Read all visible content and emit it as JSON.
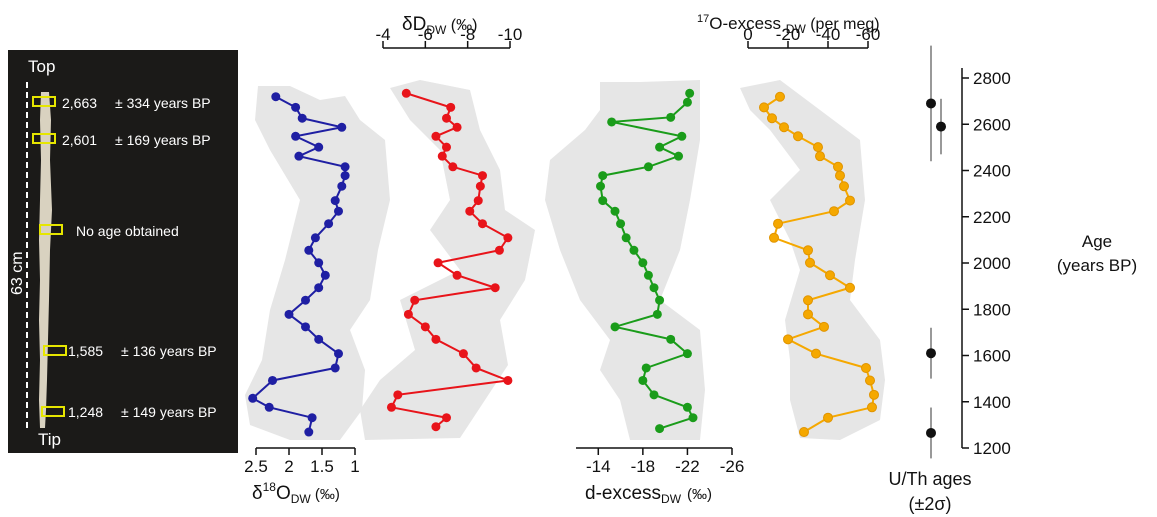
{
  "core_panel": {
    "top_label": "Top",
    "tip_label": "Tip",
    "length_label": "63 cm",
    "samples": [
      {
        "label": "2,663",
        "error": "± 334 years BP"
      },
      {
        "label": "2,601",
        "error": "± 169 years BP"
      },
      {
        "label": "No age obtained",
        "error": ""
      },
      {
        "label": "1,585",
        "error": "± 136 years BP"
      },
      {
        "label": "1,248",
        "error": "± 149 years BP"
      }
    ]
  },
  "chart_data": [
    {
      "type": "line",
      "name": "d18O",
      "color": "#1f1fa3",
      "xlabel_main": "δ",
      "xlabel_sup": "18",
      "xlabel_mid": "O",
      "xlabel_sub": "DW",
      "xlabel_unit": " (‰)",
      "xlim": [
        2.5,
        1.0
      ],
      "xticks": [
        "2.5",
        "2",
        "1.5",
        "1"
      ],
      "y": [
        2719,
        2673,
        2626,
        2587,
        2548,
        2501,
        2462,
        2416,
        2378,
        2332,
        2270,
        2224,
        2170,
        2109,
        2055,
        2001,
        1947,
        1893,
        1839,
        1778,
        1724,
        1670,
        1608,
        1546,
        1492,
        1415,
        1376,
        1331,
        1269
      ],
      "x": [
        2.2,
        1.9,
        1.8,
        1.2,
        1.9,
        1.55,
        1.85,
        1.15,
        1.15,
        1.2,
        1.3,
        1.25,
        1.4,
        1.6,
        1.7,
        1.55,
        1.45,
        1.55,
        1.75,
        2.0,
        1.75,
        1.55,
        1.25,
        1.3,
        2.25,
        2.55,
        2.3,
        1.65,
        1.7
      ]
    },
    {
      "type": "line",
      "name": "dD",
      "color": "#e8141a",
      "xlabel_main": "δD",
      "xlabel_sub": "DW",
      "xlabel_unit": " (‰)",
      "xlim": [
        -4,
        -10
      ],
      "xticks": [
        "-4",
        "-6",
        "-8",
        "-10"
      ],
      "y": [
        2734,
        2673,
        2626,
        2587,
        2548,
        2501,
        2462,
        2416,
        2378,
        2332,
        2270,
        2224,
        2170,
        2109,
        2055,
        2001,
        1947,
        1893,
        1839,
        1778,
        1724,
        1670,
        1608,
        1546,
        1492,
        1430,
        1376,
        1331,
        1292
      ],
      "x": [
        -5.1,
        -7.2,
        -7.0,
        -7.5,
        -6.5,
        -7.0,
        -6.8,
        -7.3,
        -8.7,
        -8.6,
        -8.5,
        -8.1,
        -8.7,
        -9.9,
        -9.5,
        -6.6,
        -7.5,
        -9.3,
        -5.5,
        -5.2,
        -6.0,
        -6.5,
        -7.8,
        -8.4,
        -9.9,
        -4.7,
        -4.4,
        -7.0,
        -6.5
      ]
    },
    {
      "type": "line",
      "name": "d-excess",
      "color": "#1a9c1a",
      "xlabel_main": "d-excess",
      "xlabel_sub": "DW",
      "xlabel_unit": "(‰)",
      "xlim": [
        -12,
        -26
      ],
      "xticks": [
        "-14",
        "-18",
        "-22",
        "-26"
      ],
      "y": [
        2734,
        2695,
        2630,
        2610,
        2548,
        2501,
        2462,
        2416,
        2378,
        2332,
        2270,
        2224,
        2170,
        2109,
        2055,
        2001,
        1947,
        1893,
        1839,
        1778,
        1724,
        1670,
        1608,
        1546,
        1492,
        1430,
        1376,
        1331,
        1284
      ],
      "x": [
        -22.2,
        -22.0,
        -20.5,
        -15.2,
        -21.5,
        -19.5,
        -21.2,
        -18.5,
        -14.4,
        -14.2,
        -14.4,
        -15.5,
        -16.0,
        -16.5,
        -17.2,
        -18.0,
        -18.5,
        -19.0,
        -19.5,
        -19.3,
        -15.5,
        -20.5,
        -22.0,
        -18.3,
        -18.0,
        -19.0,
        -22.0,
        -22.5,
        -19.5
      ]
    },
    {
      "type": "line",
      "name": "17O-excess",
      "color": "#f5a800",
      "xlabel_sup": "17",
      "xlabel_main": "O-excess ",
      "xlabel_sub": "DW",
      "xlabel_unit": " (per meg)",
      "xlim": [
        0,
        -60
      ],
      "xticks": [
        "0",
        "-20",
        "-40",
        "-60"
      ],
      "y": [
        2719,
        2673,
        2626,
        2587,
        2548,
        2501,
        2462,
        2416,
        2378,
        2332,
        2270,
        2224,
        2170,
        2109,
        2055,
        2001,
        1947,
        1893,
        1839,
        1778,
        1724,
        1670,
        1608,
        1546,
        1492,
        1430,
        1376,
        1331,
        1269
      ],
      "x": [
        -16.0,
        -8.0,
        -12.0,
        -18.0,
        -25.0,
        -35.0,
        -36.0,
        -45.0,
        -46.0,
        -48.0,
        -51.0,
        -43.0,
        -15.0,
        -13.0,
        -30.0,
        -31.0,
        -41.0,
        -51.0,
        -30.0,
        -30.0,
        -38.0,
        -20.0,
        -34.0,
        -59.0,
        -61.0,
        -63.0,
        -62.0,
        -40.0,
        -28.0
      ]
    },
    {
      "type": "scatter",
      "name": "U/Th ages",
      "xlabel_line1": "U/Th ages",
      "xlabel_line2": "(±2σ)",
      "ylabel_line1": "Age",
      "ylabel_line2": "(years BP)",
      "ylim": [
        1200,
        2800
      ],
      "yticks": [
        "1200",
        "1400",
        "1600",
        "1800",
        "2000",
        "2200",
        "2400",
        "2600",
        "2800"
      ],
      "points": [
        {
          "x": 0,
          "age": 2690,
          "err": 250
        },
        {
          "x": 1,
          "age": 2590,
          "err": 120
        },
        {
          "x": 0,
          "age": 1610,
          "err": 110
        },
        {
          "x": 0,
          "age": 1265,
          "err": 110
        }
      ]
    }
  ]
}
